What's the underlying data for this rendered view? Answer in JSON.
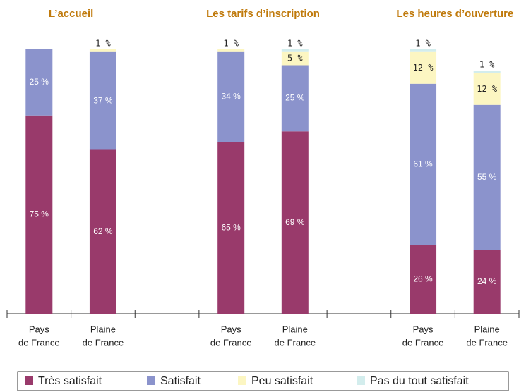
{
  "chart_data": [
    {
      "type": "stacked_bar",
      "title": "L’accueil",
      "categories": [
        [
          "Pays",
          "de France"
        ],
        [
          "Plaine",
          "de France"
        ]
      ],
      "ylim": [
        0,
        100
      ],
      "series": [
        {
          "name": "Très satisfait",
          "color": "#993a6b",
          "values": [
            75,
            62
          ],
          "value_labels": [
            "75 %",
            "62 %"
          ]
        },
        {
          "name": "Satisfait",
          "color": "#8b93cc",
          "values": [
            25,
            37
          ],
          "value_labels": [
            "25 %",
            "37 %"
          ]
        },
        {
          "name": "Peu satisfait",
          "color": "#fcf6c2",
          "values": [
            null,
            1
          ],
          "value_labels": [
            null,
            "1 %"
          ]
        },
        {
          "name": "Pas du tout satisfait",
          "color": "#d3eded",
          "values": [
            null,
            null
          ],
          "value_labels": [
            null,
            null
          ]
        }
      ]
    },
    {
      "type": "stacked_bar",
      "title": "Les tarifs d’inscription",
      "categories": [
        [
          "Pays",
          "de France"
        ],
        [
          "Plaine",
          "de France"
        ]
      ],
      "ylim": [
        0,
        100
      ],
      "series": [
        {
          "name": "Très satisfait",
          "color": "#993a6b",
          "values": [
            65,
            69
          ],
          "value_labels": [
            "65 %",
            "69 %"
          ]
        },
        {
          "name": "Satisfait",
          "color": "#8b93cc",
          "values": [
            34,
            25
          ],
          "value_labels": [
            "34 %",
            "25 %"
          ]
        },
        {
          "name": "Peu satisfait",
          "color": "#fcf6c2",
          "values": [
            1,
            5
          ],
          "value_labels": [
            "1 %",
            "5 %"
          ]
        },
        {
          "name": "Pas du tout satisfait",
          "color": "#d3eded",
          "values": [
            null,
            1
          ],
          "value_labels": [
            null,
            "1 %"
          ]
        }
      ]
    },
    {
      "type": "stacked_bar",
      "title": "Les heures d’ouverture",
      "categories": [
        [
          "Pays",
          "de France"
        ],
        [
          "Plaine",
          "de France"
        ]
      ],
      "ylim": [
        0,
        100
      ],
      "series": [
        {
          "name": "Très satisfait",
          "color": "#993a6b",
          "values": [
            26,
            24
          ],
          "value_labels": [
            "26 %",
            "24 %"
          ]
        },
        {
          "name": "Satisfait",
          "color": "#8b93cc",
          "values": [
            61,
            55
          ],
          "value_labels": [
            "61 %",
            "55 %"
          ]
        },
        {
          "name": "Peu satisfait",
          "color": "#fcf6c2",
          "values": [
            12,
            12
          ],
          "value_labels": [
            "12 %",
            "12 %"
          ]
        },
        {
          "name": "Pas du tout satisfait",
          "color": "#d3eded",
          "values": [
            1,
            1
          ],
          "value_labels": [
            "1 %",
            "1 %"
          ]
        }
      ]
    }
  ]
}
